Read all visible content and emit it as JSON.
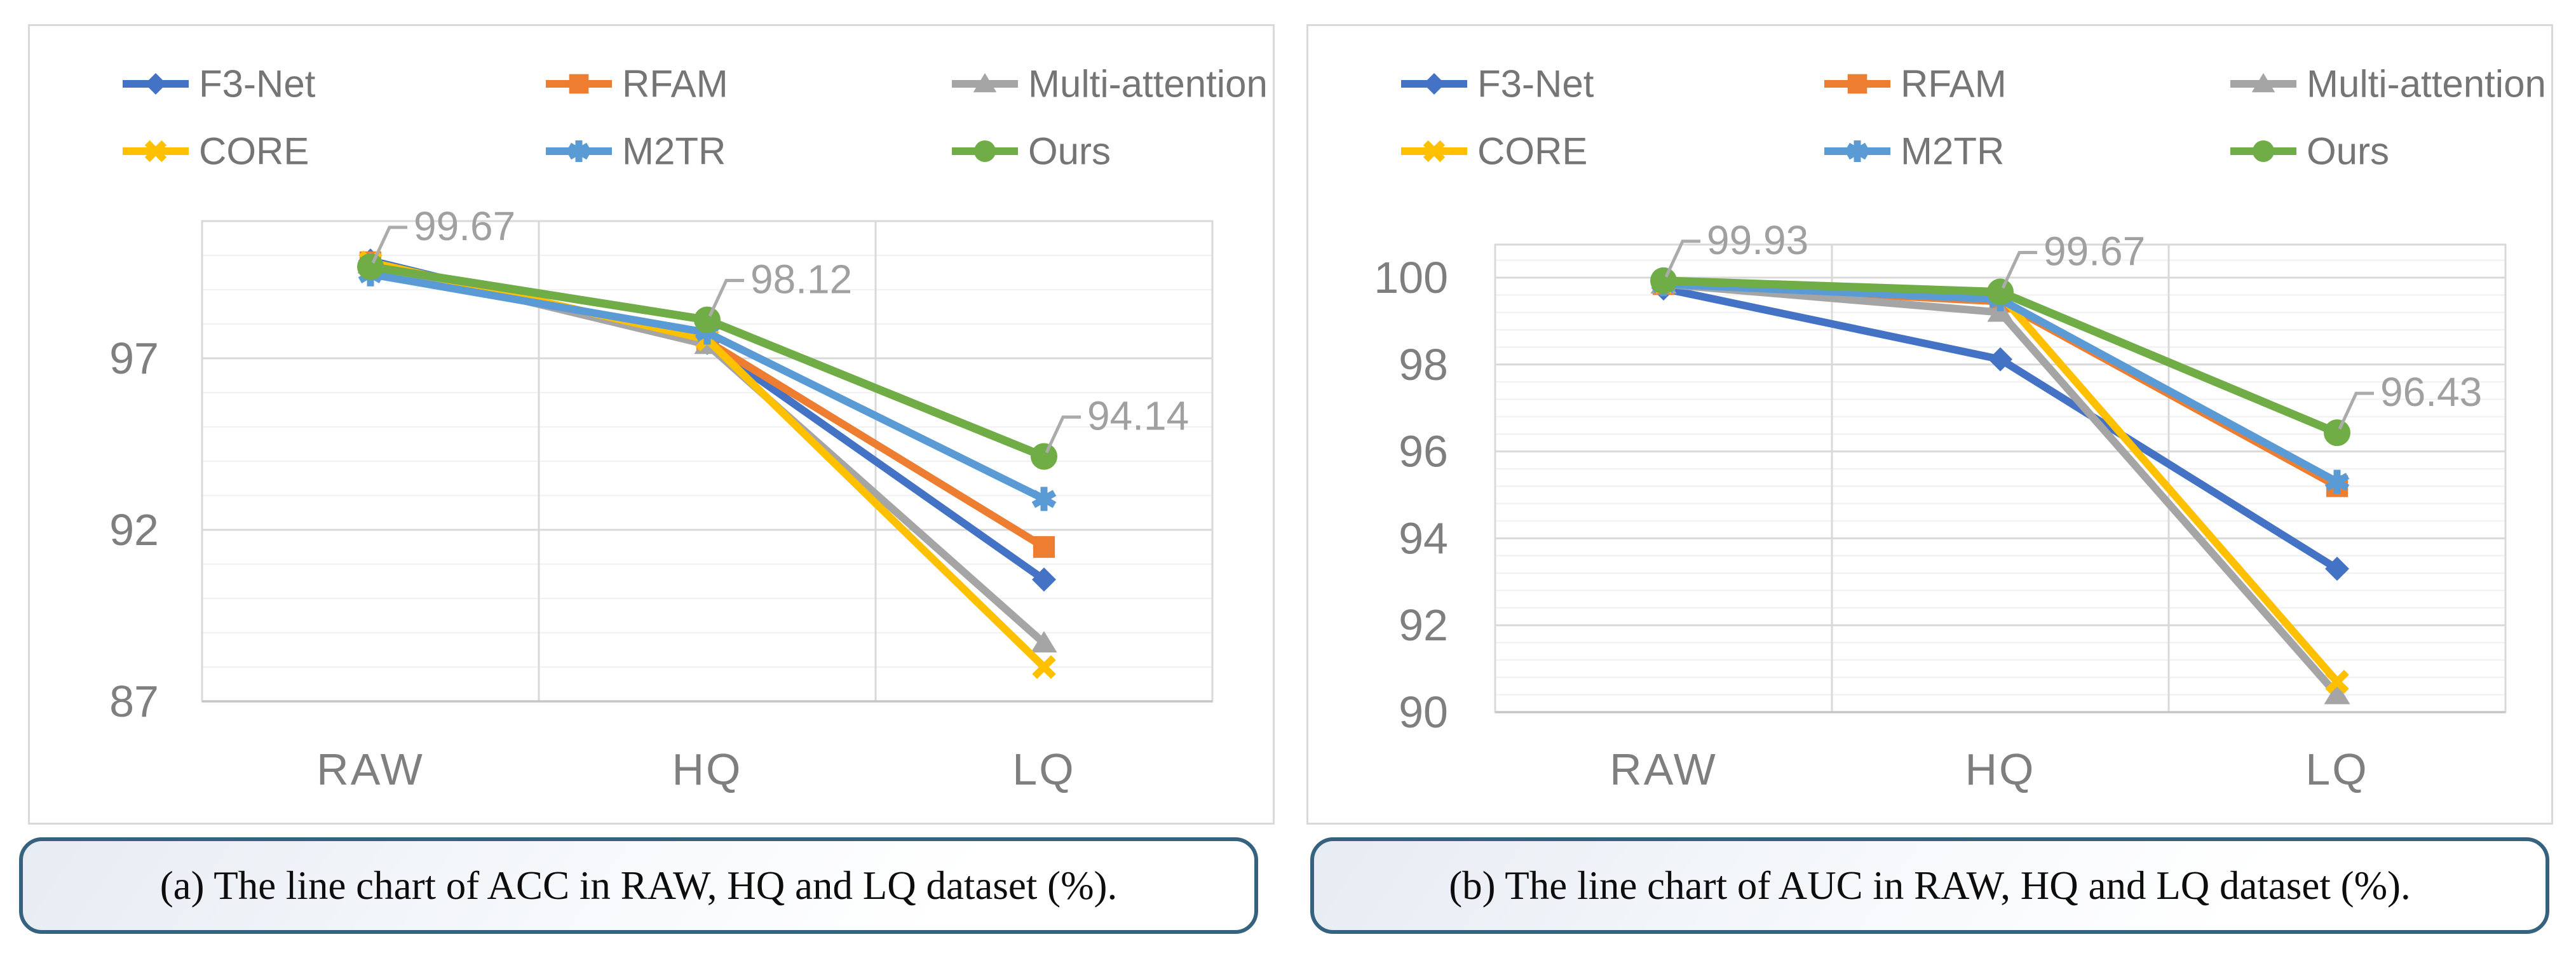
{
  "figure": {
    "panels": [
      {
        "id": "acc",
        "caption": "(a) The line chart of ACC in RAW, HQ and LQ dataset (%)."
      },
      {
        "id": "auc",
        "caption": "(b) The line chart of AUC in RAW, HQ and LQ dataset (%)."
      }
    ],
    "colors": {
      "grid_minor": "#f2f2f2",
      "grid_major": "#d9d9d9",
      "plot_border": "#d9d9d9",
      "axis_line": "#c6c6c6",
      "tick_label": "#7f7f7f",
      "legend_label": "#757575",
      "annotation_text": "#a0a0a0",
      "annotation_leader": "#ababab"
    }
  },
  "chart_data": [
    {
      "type": "line",
      "title": "",
      "xlabel": "",
      "ylabel": "",
      "categories": [
        "RAW",
        "HQ",
        "LQ"
      ],
      "series": [
        {
          "name": "F3-Net",
          "color": "#4472c4",
          "marker": "diamond",
          "values": [
            99.85,
            97.45,
            90.55
          ]
        },
        {
          "name": "RFAM",
          "color": "#ed7d31",
          "marker": "square",
          "values": [
            99.8,
            97.5,
            91.5
          ]
        },
        {
          "name": "Multi-attention",
          "color": "#a5a5a5",
          "marker": "triangle",
          "values": [
            99.75,
            97.4,
            88.7
          ]
        },
        {
          "name": "CORE",
          "color": "#ffc000",
          "marker": "x",
          "values": [
            99.8,
            97.55,
            88.0
          ]
        },
        {
          "name": "M2TR",
          "color": "#5b9bd5",
          "marker": "asterisk",
          "values": [
            99.45,
            97.75,
            92.9
          ]
        },
        {
          "name": "Ours",
          "color": "#70ad47",
          "marker": "circle",
          "values": [
            99.67,
            98.12,
            94.14
          ]
        }
      ],
      "annotations": {
        "series": "Ours",
        "labels": [
          {
            "cat": 0,
            "text": "99.67"
          },
          {
            "cat": 1,
            "text": "98.12"
          },
          {
            "cat": 2,
            "text": "94.14"
          }
        ]
      },
      "y_axis": {
        "min": 87,
        "max": 101,
        "major_ticks": [
          97,
          92,
          87
        ],
        "minor_unit": 1
      },
      "legend_position": "top",
      "grid": true
    },
    {
      "type": "line",
      "title": "",
      "xlabel": "",
      "ylabel": "",
      "categories": [
        "RAW",
        "HQ",
        "LQ"
      ],
      "series": [
        {
          "name": "F3-Net",
          "color": "#4472c4",
          "marker": "diamond",
          "values": [
            99.75,
            98.12,
            93.3
          ]
        },
        {
          "name": "RFAM",
          "color": "#ed7d31",
          "marker": "square",
          "values": [
            99.85,
            99.45,
            95.2
          ]
        },
        {
          "name": "Multi-attention",
          "color": "#a5a5a5",
          "marker": "triangle",
          "values": [
            99.85,
            99.2,
            90.4
          ]
        },
        {
          "name": "CORE",
          "color": "#ffc000",
          "marker": "x",
          "values": [
            99.9,
            99.6,
            90.7
          ]
        },
        {
          "name": "M2TR",
          "color": "#5b9bd5",
          "marker": "asterisk",
          "values": [
            99.85,
            99.5,
            95.3
          ]
        },
        {
          "name": "Ours",
          "color": "#70ad47",
          "marker": "circle",
          "values": [
            99.93,
            99.67,
            96.43
          ]
        }
      ],
      "annotations": {
        "series": "Ours",
        "labels": [
          {
            "cat": 0,
            "text": "99.93"
          },
          {
            "cat": 1,
            "text": "99.67"
          },
          {
            "cat": 2,
            "text": "96.43"
          }
        ]
      },
      "y_axis": {
        "min": 90,
        "max": 100.76,
        "major_ticks": [
          100,
          98,
          96,
          94,
          92,
          90
        ],
        "minor_unit": 0.4
      },
      "legend_position": "top",
      "grid": true
    }
  ]
}
